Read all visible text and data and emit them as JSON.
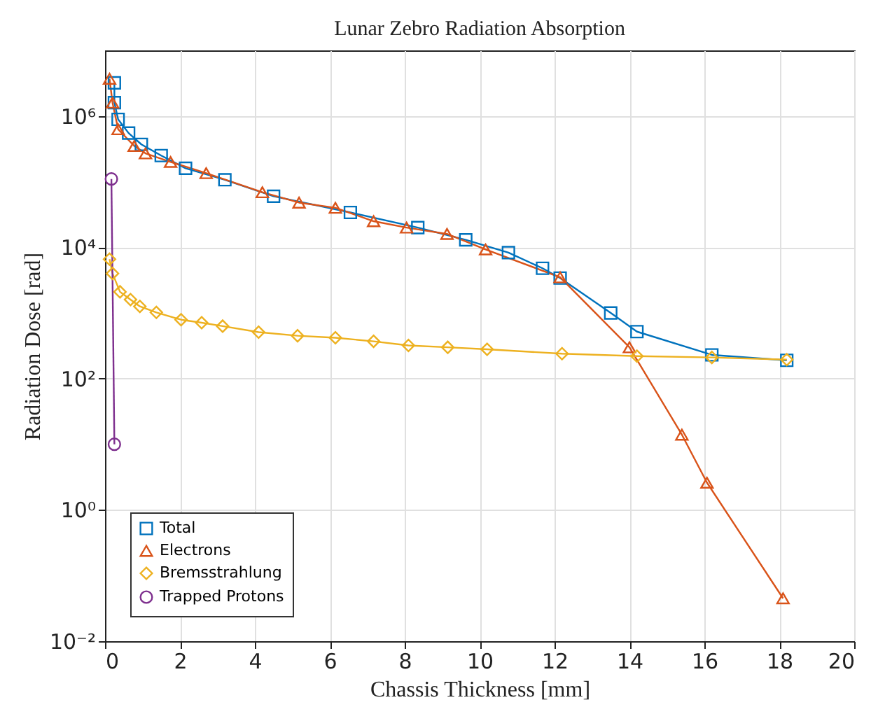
{
  "chart_data": {
    "type": "line",
    "title": "Lunar Zebro Radiation Absorption",
    "xlabel": "Chassis Thickness [mm]",
    "ylabel": "Radiation Dose [rad]",
    "xlim": [
      0,
      20
    ],
    "xticks": [
      0,
      2,
      4,
      6,
      8,
      10,
      12,
      14,
      16,
      18,
      20
    ],
    "ylim": [
      0.01,
      10000000
    ],
    "yticks": [
      {
        "value": 0.01,
        "label": "10⁻²"
      },
      {
        "value": 1,
        "label": "10⁰"
      },
      {
        "value": 100,
        "label": "10²"
      },
      {
        "value": 10000,
        "label": "10⁴"
      },
      {
        "value": 1000000,
        "label": "10⁶"
      }
    ],
    "log": "y",
    "grid": true,
    "legend": "bottom left",
    "line_style": "solid",
    "series": [
      {
        "name": "Total",
        "color": "#0072bd",
        "marker": "square",
        "x": [
          0.25,
          0.25,
          0.35,
          0.63,
          0.97,
          1.5,
          2.15,
          3.2,
          4.5,
          6.55,
          8.35,
          9.63,
          10.77,
          11.68,
          12.15,
          13.5,
          14.2,
          16.2,
          18.2
        ],
        "values": [
          3200000,
          1600000,
          890000,
          550000,
          370000,
          250000,
          160000,
          107000,
          60000,
          34000,
          20000,
          13000,
          8300,
          4800,
          3400,
          1000,
          520,
          230,
          190
        ]
      },
      {
        "name": "Electrons",
        "color": "#d95319",
        "marker": "triangle",
        "x": [
          0.12,
          0.2,
          0.35,
          0.78,
          1.08,
          1.75,
          2.7,
          4.2,
          5.18,
          6.15,
          7.17,
          8.05,
          9.13,
          10.16,
          12.15,
          14.0,
          15.4,
          16.07,
          18.1
        ],
        "values": [
          3700000,
          1600000,
          630000,
          350000,
          270000,
          200000,
          135000,
          69000,
          48000,
          40000,
          25000,
          20000,
          16000,
          9300,
          3500,
          300,
          14,
          2.6,
          0.045
        ]
      },
      {
        "name": "Bremsstrahlung",
        "color": "#edb120",
        "marker": "diamond",
        "x": [
          0.12,
          0.2,
          0.4,
          0.68,
          0.93,
          1.37,
          2.03,
          2.58,
          3.14,
          4.1,
          5.14,
          6.15,
          7.17,
          8.1,
          9.15,
          10.2,
          12.2,
          14.2,
          16.2,
          18.2
        ],
        "values": [
          6600,
          4000,
          2100,
          1600,
          1260,
          1020,
          790,
          710,
          630,
          510,
          450,
          420,
          370,
          320,
          300,
          280,
          240,
          220,
          210,
          195
        ]
      },
      {
        "name": "Trapped Protons",
        "color": "#7e2f8e",
        "marker": "circle",
        "x": [
          0.17,
          0.25
        ],
        "values": [
          110000,
          10
        ]
      }
    ]
  }
}
